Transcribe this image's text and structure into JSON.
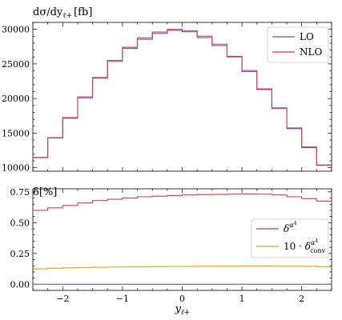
{
  "chart_data": [
    {
      "type": "line",
      "drawstyle": "steps",
      "title": "dσ/dy_ℓ+ [fb]",
      "title_parts": {
        "main": "dσ/dy",
        "sub": "ℓ+",
        "unit": "[fb]"
      },
      "xlabel": "",
      "ylabel": "",
      "xlim": [
        -2.5,
        2.5
      ],
      "ylim": [
        9500,
        31000
      ],
      "yticks": [
        10000,
        15000,
        20000,
        25000,
        30000
      ],
      "ytick_labels": [
        "10000",
        "15000",
        "20000",
        "25000",
        "30000"
      ],
      "legend_position": "top-right",
      "bin_edges": [
        -2.5,
        -2.25,
        -2.0,
        -1.75,
        -1.5,
        -1.25,
        -1.0,
        -0.75,
        -0.5,
        -0.25,
        0.0,
        0.25,
        0.5,
        0.75,
        1.0,
        1.25,
        1.5,
        1.75,
        2.0,
        2.25,
        2.5
      ],
      "series": [
        {
          "name": "LO",
          "color": "#5b5bd6",
          "values": [
            11450,
            14300,
            17150,
            20100,
            22950,
            25350,
            27250,
            28550,
            29400,
            29850,
            29650,
            28800,
            27650,
            26000,
            23900,
            21300,
            18550,
            15650,
            12900,
            10350
          ]
        },
        {
          "name": "NLO",
          "color": "#e23b3b",
          "values": [
            11500,
            14350,
            17250,
            20250,
            23050,
            25500,
            27400,
            28750,
            29600,
            30000,
            29800,
            29000,
            27850,
            26100,
            24050,
            21400,
            18650,
            15750,
            13000,
            10400
          ]
        }
      ]
    },
    {
      "type": "line",
      "title": "δ[%]",
      "xlabel": "y_ℓ+",
      "xlabel_parts": {
        "main": "y",
        "sub": "ℓ+"
      },
      "ylabel": "",
      "xlim": [
        -2.5,
        2.5
      ],
      "ylim": [
        -0.05,
        0.775
      ],
      "xticks": [
        -2,
        -1,
        0,
        1,
        2
      ],
      "xtick_labels": [
        "−2",
        "−1",
        "0",
        "1",
        "2"
      ],
      "yticks": [
        0.0,
        0.25,
        0.5,
        0.75
      ],
      "ytick_labels": [
        "0.00",
        "0.25",
        "0.50",
        "0.75"
      ],
      "legend_position": "center-right",
      "bin_edges": [
        -2.5,
        -2.25,
        -2.0,
        -1.75,
        -1.5,
        -1.25,
        -1.0,
        -0.75,
        -0.5,
        -0.25,
        0.0,
        0.25,
        0.5,
        0.75,
        1.0,
        1.25,
        1.5,
        1.75,
        2.0,
        2.25,
        2.5
      ],
      "series": [
        {
          "name": "δ^{α^4}",
          "label_parts": {
            "main": "δ",
            "sup": "α",
            "supsup": "4"
          },
          "color": "#e23b3b",
          "drawstyle": "steps",
          "values": [
            0.6,
            0.62,
            0.64,
            0.66,
            0.68,
            0.69,
            0.7,
            0.71,
            0.715,
            0.72,
            0.725,
            0.728,
            0.73,
            0.732,
            0.733,
            0.732,
            0.725,
            0.71,
            0.695,
            0.675
          ]
        },
        {
          "name": "10 · δ_conv^{α^4}",
          "label_parts": {
            "prefix": "10 · ",
            "main": "δ",
            "sup": "α",
            "supsup": "4",
            "sub": "conv"
          },
          "color": "#f0a000",
          "drawstyle": "steps",
          "values": [
            0.125,
            0.13,
            0.133,
            0.136,
            0.138,
            0.14,
            0.141,
            0.142,
            0.143,
            0.144,
            0.145,
            0.146,
            0.147,
            0.147,
            0.148,
            0.148,
            0.147,
            0.146,
            0.145,
            0.143
          ]
        },
        {
          "name": "",
          "color": "#5b5bd6",
          "drawstyle": "line",
          "values": [
            0.0,
            0.0
          ]
        }
      ]
    }
  ]
}
